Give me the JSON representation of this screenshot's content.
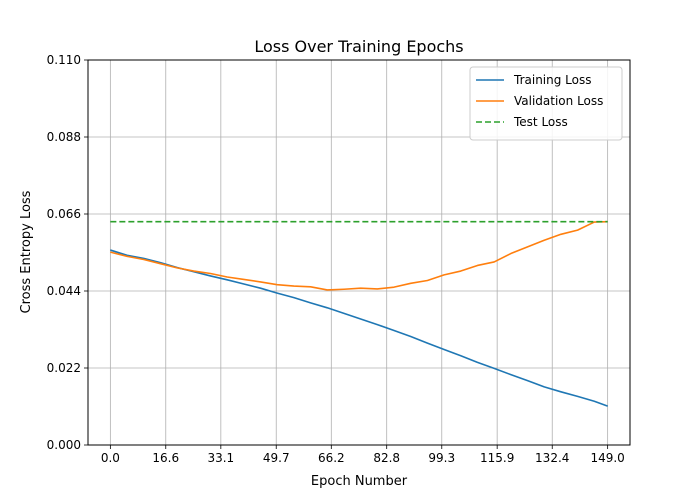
{
  "chart_data": {
    "type": "line",
    "title": "Loss Over Training Epochs",
    "xlabel": "Epoch Number",
    "ylabel": "Cross Entropy Loss",
    "xlim": [
      -6.7,
      155.7
    ],
    "ylim": [
      0.0,
      0.11
    ],
    "xticks": [
      0.0,
      16.6,
      33.1,
      49.7,
      66.2,
      82.8,
      99.3,
      115.9,
      132.4,
      149.0
    ],
    "xtick_labels": [
      "0.0",
      "16.6",
      "33.1",
      "49.7",
      "66.2",
      "82.8",
      "99.3",
      "115.9",
      "132.4",
      "149.0"
    ],
    "yticks": [
      0.0,
      0.022,
      0.044,
      0.066,
      0.088,
      0.11
    ],
    "ytick_labels": [
      "0.000",
      "0.022",
      "0.044",
      "0.066",
      "0.088",
      "0.110"
    ],
    "grid": true,
    "legend_position": "top-right",
    "series": [
      {
        "name": "Training Loss",
        "color": "#1f77b4",
        "style": "solid",
        "x": [
          0,
          5,
          10,
          15,
          20,
          25,
          30,
          35,
          40,
          45,
          50,
          55,
          60,
          65,
          70,
          75,
          80,
          85,
          90,
          95,
          100,
          105,
          110,
          115,
          120,
          125,
          130,
          135,
          140,
          145,
          149
        ],
        "y": [
          0.0557,
          0.0542,
          0.0533,
          0.0521,
          0.0507,
          0.0495,
          0.0483,
          0.0472,
          0.046,
          0.0448,
          0.0434,
          0.0421,
          0.0406,
          0.0392,
          0.0376,
          0.036,
          0.0344,
          0.0327,
          0.031,
          0.0291,
          0.0273,
          0.0255,
          0.0236,
          0.0219,
          0.0201,
          0.0184,
          0.0166,
          0.0152,
          0.0139,
          0.0125,
          0.0111
        ]
      },
      {
        "name": "Validation Loss",
        "color": "#ff7f0e",
        "style": "solid",
        "x": [
          0,
          5,
          10,
          15,
          20,
          25,
          30,
          35,
          40,
          45,
          50,
          55,
          60,
          65,
          70,
          75,
          80,
          85,
          90,
          95,
          100,
          105,
          110,
          115,
          120,
          125,
          130,
          135,
          140,
          145,
          149
        ],
        "y": [
          0.0551,
          0.0539,
          0.053,
          0.0518,
          0.0506,
          0.0497,
          0.049,
          0.048,
          0.0473,
          0.0466,
          0.0458,
          0.0454,
          0.0452,
          0.0443,
          0.0445,
          0.0448,
          0.0446,
          0.0451,
          0.0462,
          0.047,
          0.0486,
          0.0497,
          0.0513,
          0.0523,
          0.0547,
          0.0566,
          0.0585,
          0.0602,
          0.0614,
          0.0637,
          0.0638
        ]
      },
      {
        "name": "Test Loss",
        "color": "#2ca02c",
        "style": "dashed",
        "x": [
          0,
          149
        ],
        "y": [
          0.0638,
          0.0638
        ]
      }
    ]
  }
}
